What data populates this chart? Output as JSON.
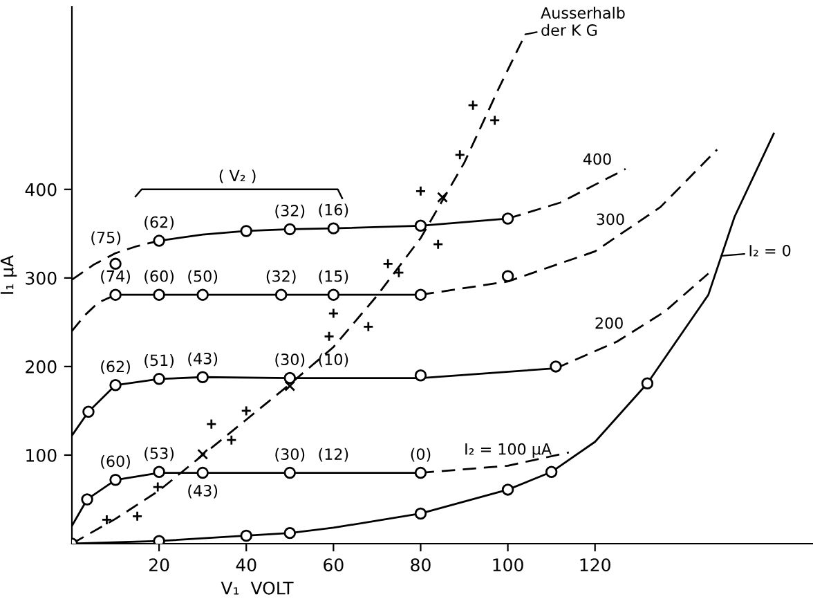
{
  "chart_data": {
    "type": "line",
    "xlabel": "V₁  VOLT",
    "ylabel": "I₁ µA",
    "xlim": [
      0,
      170
    ],
    "ylim": [
      0,
      606
    ],
    "xticks": [
      20,
      40,
      60,
      80,
      100,
      120
    ],
    "yticks": [
      100,
      200,
      300,
      400
    ],
    "grid": false,
    "series": [
      {
        "color": "#000000",
        "line_style": "solid",
        "x": [
          0,
          20,
          40,
          50,
          60,
          80,
          100,
          110,
          120,
          132,
          146,
          152,
          161
        ],
        "values": [
          0,
          3,
          9,
          12,
          18,
          34,
          61,
          81,
          115,
          181,
          281,
          369,
          463
        ]
      },
      {
        "color": "#000000",
        "line_style": "solid",
        "x": [
          0,
          3.5,
          10,
          20,
          30,
          50,
          80
        ],
        "values": [
          20,
          50,
          72,
          80,
          80,
          80,
          80
        ]
      },
      {
        "color": "#000000",
        "line_style": "dashed",
        "x": [
          80,
          100,
          114
        ],
        "values": [
          80,
          88,
          103
        ]
      },
      {
        "color": "#000000",
        "line_style": "solid",
        "x": [
          0,
          3.8,
          10,
          20,
          30,
          50,
          80,
          111
        ],
        "values": [
          122,
          149,
          179,
          186,
          188,
          187,
          187,
          198
        ]
      },
      {
        "color": "#000000",
        "line_style": "dashed",
        "x": [
          111,
          125,
          136,
          146
        ],
        "values": [
          198,
          228,
          262,
          305
        ]
      },
      {
        "color": "#000000",
        "line_style": "dashed",
        "x": [
          0,
          3,
          6,
          10
        ],
        "values": [
          240,
          258,
          272,
          281
        ]
      },
      {
        "color": "#000000",
        "line_style": "solid",
        "x": [
          10,
          20,
          30,
          48,
          60,
          80
        ],
        "values": [
          281,
          281,
          281,
          281,
          281,
          281
        ]
      },
      {
        "color": "#000000",
        "line_style": "dashed",
        "x": [
          80,
          100,
          120,
          135,
          148
        ],
        "values": [
          281,
          296,
          330,
          380,
          445
        ]
      },
      {
        "color": "#000000",
        "line_style": "dashed",
        "x": [
          0,
          5,
          10,
          15,
          20
        ],
        "values": [
          298,
          315,
          328,
          336,
          342
        ]
      },
      {
        "color": "#000000",
        "line_style": "solid",
        "x": [
          20,
          30,
          40,
          50,
          60,
          80,
          100
        ],
        "values": [
          342,
          349,
          353,
          355,
          356,
          359,
          367
        ]
      },
      {
        "color": "#000000",
        "line_style": "dashed",
        "x": [
          100,
          112,
          127
        ],
        "values": [
          367,
          385,
          423
        ]
      },
      {
        "color": "#000000",
        "line_style": "dashed",
        "x": [
          0,
          10,
          20,
          30,
          40,
          50,
          60,
          70,
          80,
          90,
          98,
          104
        ],
        "values": [
          0,
          28,
          60,
          100,
          140,
          180,
          222,
          280,
          345,
          430,
          515,
          575
        ]
      },
      {
        "type": "scatter",
        "color": "#000000",
        "marker": "circle",
        "x": [
          0,
          20,
          40,
          50,
          80,
          100,
          110,
          132,
          3.5,
          10,
          20,
          30,
          50,
          80,
          3.8,
          10,
          20,
          30,
          50,
          80,
          111,
          10,
          20,
          30,
          48,
          60,
          80,
          100,
          10,
          20,
          40,
          50,
          60,
          80,
          100
        ],
        "values": [
          0,
          3,
          9,
          12,
          34,
          61,
          81,
          181,
          50,
          72,
          81,
          80,
          80,
          80,
          149,
          179,
          186,
          188,
          187,
          190,
          200,
          281,
          281,
          281,
          281,
          281,
          281,
          302,
          316,
          342,
          353,
          355,
          356,
          359,
          367
        ]
      },
      {
        "type": "scatter",
        "color": "#000000",
        "marker": "plus",
        "x": [
          8,
          15,
          19.7,
          32,
          36.6,
          40,
          59,
          60,
          68,
          72.5,
          75,
          84,
          80,
          89,
          92,
          97
        ],
        "values": [
          27,
          31,
          64,
          135,
          117,
          150,
          234,
          260,
          245,
          316,
          306,
          338,
          398,
          439,
          495,
          478
        ]
      },
      {
        "type": "scatter",
        "color": "#000000",
        "marker": "cross",
        "x": [
          30,
          50,
          85
        ],
        "values": [
          101,
          178,
          391
        ]
      }
    ],
    "annotations": [
      {
        "text": "Ausserhalb\nder K G",
        "x": 104,
        "y": 575
      },
      {
        "text": "I₂ = 0",
        "x": 149,
        "y": 325
      },
      {
        "text": "I₂ = 100 µA",
        "x": 100,
        "y": 88
      },
      {
        "text": "200",
        "x": 125,
        "y": 228
      },
      {
        "text": "300",
        "x": 120,
        "y": 330
      },
      {
        "text": "400",
        "x": 117,
        "y": 398
      },
      "( V₂ )",
      {
        "text": "(75)",
        "x": 10,
        "y": 316
      },
      {
        "text": "(62)",
        "x": 20,
        "y": 342
      },
      {
        "text": "(32)",
        "x": 50,
        "y": 355
      },
      {
        "text": "(16)",
        "x": 60,
        "y": 356
      },
      {
        "text": "(74)",
        "x": 10,
        "y": 281
      },
      {
        "text": "(60)",
        "x": 20,
        "y": 281
      },
      {
        "text": "(50)",
        "x": 30,
        "y": 281
      },
      {
        "text": "(32)",
        "x": 48,
        "y": 281
      },
      {
        "text": "(15)",
        "x": 60,
        "y": 281
      },
      {
        "text": "(62)",
        "x": 10,
        "y": 179
      },
      {
        "text": "(51)",
        "x": 20,
        "y": 186
      },
      {
        "text": "(43)",
        "x": 30,
        "y": 188
      },
      {
        "text": "(30)",
        "x": 50,
        "y": 187
      },
      {
        "text": "(10)",
        "x": 60,
        "y": 187
      },
      {
        "text": "(60)",
        "x": 10,
        "y": 72
      },
      {
        "text": "(53)",
        "x": 20,
        "y": 81
      },
      {
        "text": "(43)",
        "x": 30,
        "y": 80
      },
      {
        "text": "(30)",
        "x": 50,
        "y": 80
      },
      {
        "text": "(12)",
        "x": 60,
        "y": 80
      },
      {
        "text": "(0)",
        "x": 80,
        "y": 80
      }
    ]
  }
}
